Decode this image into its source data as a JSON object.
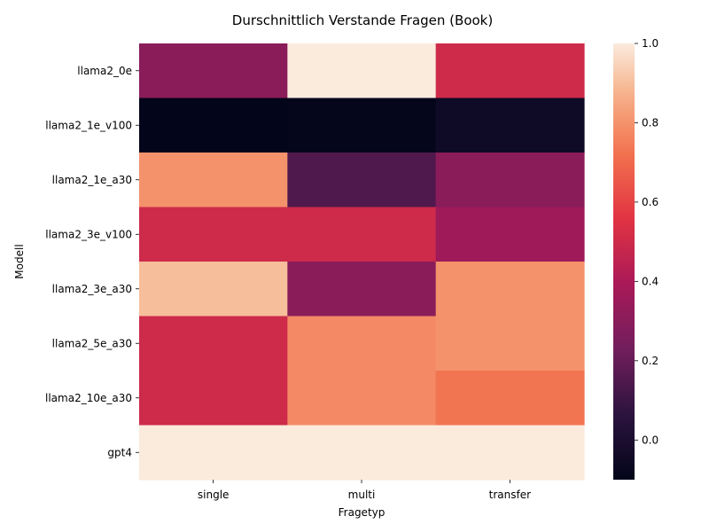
{
  "chart_data": {
    "type": "heatmap",
    "title": "Durschnittlich Verstande Fragen (Book)",
    "xlabel": "Fragetyp",
    "ylabel": "Modell",
    "x_categories": [
      "single",
      "multi",
      "transfer"
    ],
    "y_categories": [
      "llama2_0e",
      "llama2_1e_v100",
      "llama2_1e_a30",
      "llama2_3e_v100",
      "llama2_3e_a30",
      "llama2_5e_a30",
      "llama2_10e_a30",
      "gpt4"
    ],
    "values": [
      [
        0.3,
        1.0,
        0.5
      ],
      [
        -0.1,
        -0.09,
        -0.05
      ],
      [
        0.8,
        0.15,
        0.3
      ],
      [
        0.5,
        0.5,
        0.36
      ],
      [
        0.9,
        0.3,
        0.8
      ],
      [
        0.5,
        0.78,
        0.8
      ],
      [
        0.5,
        0.78,
        0.73
      ],
      [
        1.0,
        1.0,
        1.0
      ]
    ],
    "colorbar": {
      "range": [
        -0.1,
        1.0
      ],
      "ticks": [
        0.0,
        0.2,
        0.4,
        0.6,
        0.8,
        1.0
      ],
      "tick_labels": [
        "0.0",
        "0.2",
        "0.4",
        "0.6",
        "0.8",
        "1.0"
      ],
      "colormap": "rocket"
    },
    "grid": false,
    "legend": "colorbar-right"
  }
}
